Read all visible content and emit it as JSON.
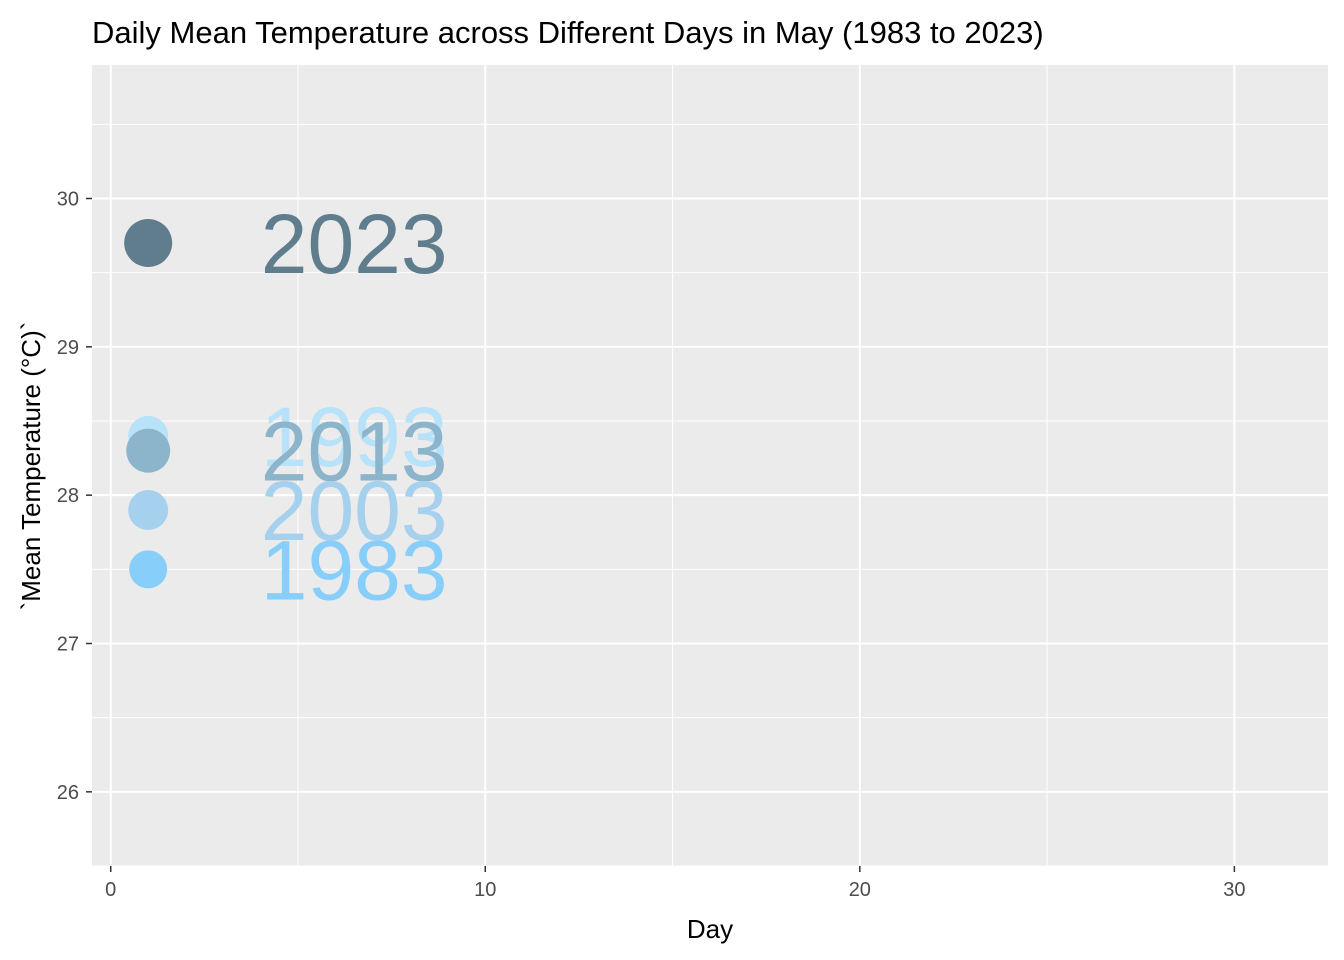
{
  "chart_data": {
    "type": "scatter",
    "title": "Daily Mean Temperature across Different Days in May (1983 to 2023)",
    "xlabel": "Day",
    "ylabel": "`Mean Temperature (°C)`",
    "xlim": [
      -0.5,
      32.5
    ],
    "ylim": [
      25.5,
      30.9
    ],
    "x_ticks": [
      0,
      10,
      20,
      30
    ],
    "y_ticks": [
      26,
      27,
      28,
      29,
      30
    ],
    "grid": true,
    "legend": "none",
    "label_offset_x": 5.5,
    "points": [
      {
        "label": "1993",
        "x": 1,
        "y": 28.4,
        "color": "#B8E2FA",
        "size": 28
      },
      {
        "label": "2013",
        "x": 1,
        "y": 28.3,
        "color": "#8CB4CB",
        "size": 32
      },
      {
        "label": "2003",
        "x": 1,
        "y": 27.9,
        "color": "#A6D1EE",
        "size": 28
      },
      {
        "label": "1983",
        "x": 1,
        "y": 27.5,
        "color": "#87CEFA",
        "size": 26
      },
      {
        "label": "2023",
        "x": 1,
        "y": 29.7,
        "color": "#607D8E",
        "size": 36
      }
    ]
  }
}
